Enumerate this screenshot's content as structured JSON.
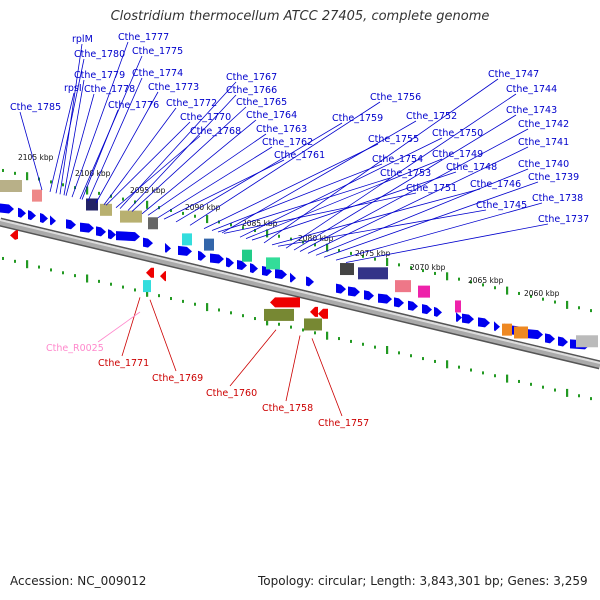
{
  "title": "Clostridium thermocellum ATCC 27405, complete genome",
  "footer": {
    "accession": "Accession: NC_009012",
    "summary": "Topology: circular; Length: 3,843,301 bp; Genes: 3,259"
  },
  "colors": {
    "forward_label": "#0000cc",
    "reverse_label": "#cc0000",
    "rna_label": "#ff88cc",
    "arrow": "#0000ee",
    "tick": "#229922"
  },
  "scale_labels": [
    "2105 kbp",
    "2100 kbp",
    "2095 kbp",
    "2090 kbp",
    "2085 kbp",
    "2080 kbp",
    "2075 kbp",
    "2070 kbp",
    "2065 kbp",
    "2060 kbp"
  ],
  "forward_genes": [
    "Cthe_1785",
    "rpsI",
    "rplM",
    "Cthe_1780",
    "Cthe_1779",
    "Cthe_1778",
    "Cthe_1777",
    "Cthe_1776",
    "Cthe_1775",
    "Cthe_1774",
    "Cthe_1773",
    "Cthe_1772",
    "Cthe_1770",
    "Cthe_1768",
    "Cthe_1767",
    "Cthe_1766",
    "Cthe_1765",
    "Cthe_1764",
    "Cthe_1763",
    "Cthe_1762",
    "Cthe_1761",
    "Cthe_1759",
    "Cthe_1756",
    "Cthe_1755",
    "Cthe_1754",
    "Cthe_1753",
    "Cthe_1752",
    "Cthe_1751",
    "Cthe_1750",
    "Cthe_1749",
    "Cthe_1748",
    "Cthe_1747",
    "Cthe_1746",
    "Cthe_1745",
    "Cthe_1744",
    "Cthe_1743",
    "Cthe_1742",
    "Cthe_1741",
    "Cthe_1740",
    "Cthe_1739",
    "Cthe_1738",
    "Cthe_1737"
  ],
  "reverse_genes": [
    "Cthe_1771",
    "Cthe_1769",
    "Cthe_1760",
    "Cthe_1758",
    "Cthe_1757"
  ],
  "rna_genes": [
    "Cthe_R0025"
  ]
}
